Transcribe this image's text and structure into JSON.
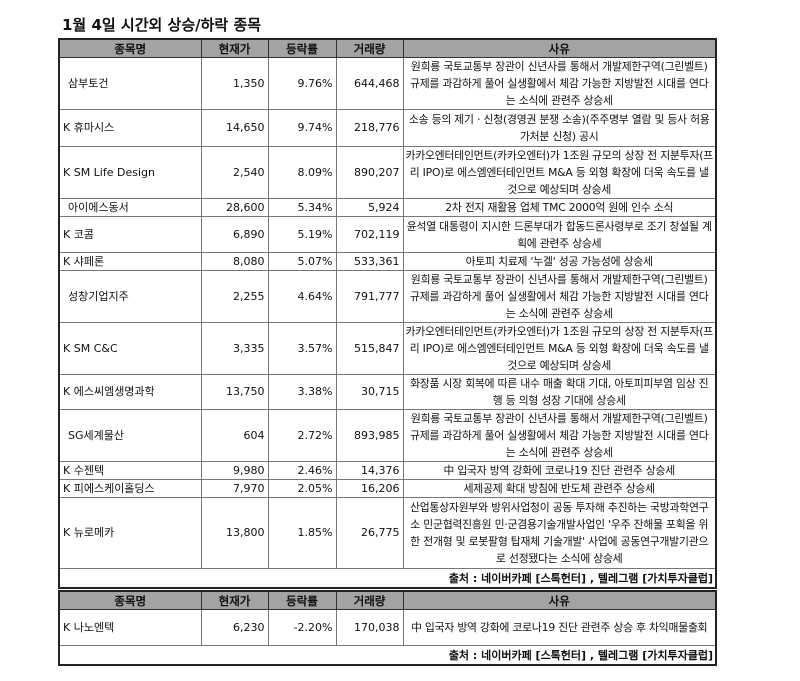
{
  "title": "1월 4일  시간외 상승/하락 종목",
  "headers": [
    "종목명",
    "현재가",
    "등락률",
    "거래량",
    "사유"
  ],
  "rising": [
    {
      "name": "삼부토건",
      "price": "1,350",
      "change": "9.76%",
      "volume": "644,468",
      "reason": "원희룡 국토교통부 장관이 신년사를 통해서 개발제한구역(그린벨트) 규제를 과감하게 풀어 실생활에서 체감 가능한 지방발전 시대를 연다는 소식에 관련주 상승세"
    },
    {
      "name": "K 휴마시스",
      "price": "14,650",
      "change": "9.74%",
      "volume": "218,776",
      "reason": "소송 등의 제기ㆍ신청(경영권 분쟁 소송)(주주명부 열람 및 등사 허용 가처분 신청) 공시"
    },
    {
      "name": "K SM Life Design",
      "price": "2,540",
      "change": "8.09%",
      "volume": "890,207",
      "reason": "카카오엔터테인먼트(카카오엔터)가 1조원 규모의 상장 전 지분투자(프리 IPO)로 에스엠엔터테인먼트 M&A 등 외형 확장에 더욱 속도를 낼 것으로 예상되며 상승세"
    },
    {
      "name": "아이에스동서",
      "price": "28,600",
      "change": "5.34%",
      "volume": "5,924",
      "reason": "2차 전지 재활용 업체 TMC 2000억 원에 인수 소식"
    },
    {
      "name": "K 코콤",
      "price": "6,890",
      "change": "5.19%",
      "volume": "702,119",
      "reason": "윤석열 대통령이 지시한 드론부대가 합동드론사령부로 조기 창설될 계획에 관련주 상승세"
    },
    {
      "name": "K 샤페론",
      "price": "8,080",
      "change": "5.07%",
      "volume": "533,361",
      "reason": "아토피 치료제 '누겔' 성공 가능성에 상승세"
    },
    {
      "name": "성창기업지주",
      "price": "2,255",
      "change": "4.64%",
      "volume": "791,777",
      "reason": "원희룡 국토교통부 장관이 신년사를 통해서 개발제한구역(그린벨트) 규제를 과감하게 풀어 실생활에서 체감 가능한 지방발전 시대를 연다는 소식에 관련주 상승세"
    },
    {
      "name": "K SM C&C",
      "price": "3,335",
      "change": "3.57%",
      "volume": "515,847",
      "reason": "카카오엔터테인먼트(카카오엔터)가 1조원 규모의 상장 전 지분투자(프리 IPO)로 에스엠엔터테인먼트 M&A 등 외형 확장에 더욱 속도를 낼 것으로 예상되며 상승세"
    },
    {
      "name": "K 에스씨엠생명과학",
      "price": "13,750",
      "change": "3.38%",
      "volume": "30,715",
      "reason": "화장품 시장 회복에 따른 내수 매출 확대 기대, 아토피피부염 임상 진행 등 의형 성장 기대에 상승세"
    },
    {
      "name": "SG세계물산",
      "price": "604",
      "change": "2.72%",
      "volume": "893,985",
      "reason": "원희룡 국토교통부 장관이 신년사를 통해서 개발제한구역(그린벨트) 규제를 과감하게 풀어 실생활에서 체감 가능한 지방발전 시대를 연다는 소식에 관련주 상승세"
    },
    {
      "name": "K 수젠텍",
      "price": "9,980",
      "change": "2.46%",
      "volume": "14,376",
      "reason": "中 입국자 방역 강화에 코로나19 진단 관련주 상승세"
    },
    {
      "name": "K 피에스케이홀딩스",
      "price": "7,970",
      "change": "2.05%",
      "volume": "16,206",
      "reason": "세제공제 확대 방침에 반도체 관련주 상승세"
    },
    {
      "name": "K 뉴로메카",
      "price": "13,800",
      "change": "1.85%",
      "volume": "26,775",
      "reason": "산업통상자원부와 방위사업청이 공동 투자해 추진하는 국방과학연구소 민군협력진흥원 민·군겸용기술개발사업인 '우주 잔해물 포획을 위한 전개형 및 로봇팔형 탑재체 기술개발' 사업에 공동연구개발기관으로 선정됐다는 소식에 상승세"
    }
  ],
  "source1": "출처 : 네이버카페 [스톡헌터] , 텔레그램 [가치투자클럽]",
  "falling": [
    {
      "name": "K 나노엔텍",
      "price": "6,230",
      "change": "-2.20%",
      "volume": "170,038",
      "reason": "中 입국자 방역 강화에 코로나19 진단 관련주 상승 후 차익매물출회"
    }
  ],
  "source2": "출처 : 네이버카페 [스톡헌터] , 텔레그램 [가치투자클럽]"
}
